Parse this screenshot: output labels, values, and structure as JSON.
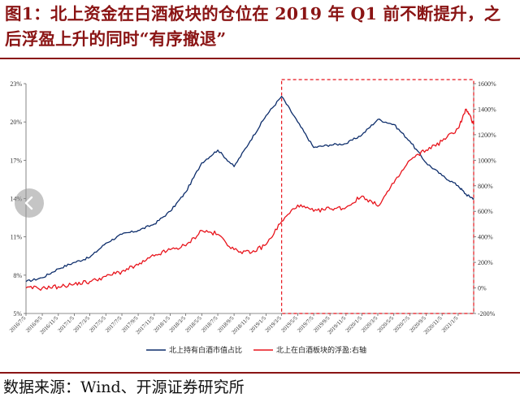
{
  "figure": {
    "title": "图1：北上资金在白酒板块的仓位在 2019 年 Q1 前不断提升，之后浮盈上升的同时“有序撤退”",
    "source": "数据来源：Wind、开源证券研究所"
  },
  "colors": {
    "title": "#8a1414",
    "blue": "#0d2d6b",
    "red": "#e8141c",
    "box": "#e8141c"
  },
  "chart_data": {
    "type": "line",
    "y_left": {
      "range": [
        5,
        23
      ],
      "ticks": [
        "23%",
        "20%",
        "17%",
        "14%",
        "11%",
        "8%",
        "5%"
      ],
      "tick_values": [
        23,
        20,
        17,
        14,
        11,
        8,
        5
      ]
    },
    "y_right": {
      "range": [
        -200,
        1600
      ],
      "ticks": [
        "1600%",
        "1400%",
        "1200%",
        "1000%",
        "800%",
        "600%",
        "400%",
        "200%",
        "0%",
        "-200%"
      ],
      "tick_values": [
        1600,
        1400,
        1200,
        1000,
        800,
        600,
        400,
        200,
        0,
        -200
      ]
    },
    "x_ticks": [
      "2016/7/5",
      "2016/9/5",
      "2016/11/5",
      "2017/1/5",
      "2017/3/5",
      "2017/5/5",
      "2017/7/5",
      "2017/9/5",
      "2017/11/5",
      "2018/1/5",
      "2018/3/5",
      "2018/5/5",
      "2018/7/5",
      "2018/9/5",
      "2018/11/5",
      "2019/1/5",
      "2019/3/5",
      "2019/5/5",
      "2019/7/5",
      "2019/9/5",
      "2019/11/5",
      "2020/1/5",
      "2020/3/5",
      "2020/5/5",
      "2020/7/5",
      "2020/9/5",
      "2020/11/5",
      "2021/1/5"
    ],
    "legend": [
      "北上持有白酒市值占比",
      "北上在白酒板块的浮盈:右轴"
    ],
    "legend_position": "bottom",
    "highlight_region": {
      "x_start": "2019/3/5",
      "x_end": "2021/3/5",
      "style": "dashed red box"
    },
    "series": [
      {
        "name": "北上持有白酒市值占比",
        "axis": "left",
        "color": "#0d2d6b",
        "points": [
          [
            "2016/7/5",
            7.5
          ],
          [
            "2016/9/5",
            7.8
          ],
          [
            "2016/11/5",
            8.5
          ],
          [
            "2017/1/5",
            9.0
          ],
          [
            "2017/3/5",
            9.4
          ],
          [
            "2017/5/5",
            10.5
          ],
          [
            "2017/7/5",
            11.2
          ],
          [
            "2017/9/5",
            11.5
          ],
          [
            "2017/11/5",
            12.0
          ],
          [
            "2018/1/5",
            13.0
          ],
          [
            "2018/3/5",
            14.5
          ],
          [
            "2018/5/5",
            16.8
          ],
          [
            "2018/7/5",
            17.8
          ],
          [
            "2018/9/5",
            16.5
          ],
          [
            "2018/11/5",
            18.5
          ],
          [
            "2019/1/5",
            20.5
          ],
          [
            "2019/3/5",
            22.0
          ],
          [
            "2019/5/5",
            20.0
          ],
          [
            "2019/7/5",
            18.0
          ],
          [
            "2019/9/5",
            18.2
          ],
          [
            "2019/11/5",
            18.3
          ],
          [
            "2020/1/5",
            19.0
          ],
          [
            "2020/3/5",
            20.2
          ],
          [
            "2020/5/5",
            19.8
          ],
          [
            "2020/7/5",
            18.5
          ],
          [
            "2020/9/5",
            16.8
          ],
          [
            "2020/11/5",
            15.8
          ],
          [
            "2021/1/5",
            15.0
          ],
          [
            "2021/2/5",
            14.3
          ],
          [
            "2021/3/5",
            14.0
          ]
        ]
      },
      {
        "name": "北上在白酒板块的浮盈:右轴",
        "axis": "right",
        "color": "#e8141c",
        "points": [
          [
            "2016/7/5",
            0
          ],
          [
            "2016/9/5",
            0
          ],
          [
            "2016/11/5",
            10
          ],
          [
            "2017/1/5",
            30
          ],
          [
            "2017/3/5",
            50
          ],
          [
            "2017/5/5",
            90
          ],
          [
            "2017/7/5",
            130
          ],
          [
            "2017/9/5",
            180
          ],
          [
            "2017/11/5",
            250
          ],
          [
            "2018/1/5",
            300
          ],
          [
            "2018/3/5",
            330
          ],
          [
            "2018/5/5",
            450
          ],
          [
            "2018/7/5",
            420
          ],
          [
            "2018/9/5",
            300
          ],
          [
            "2018/11/5",
            270
          ],
          [
            "2019/1/5",
            340
          ],
          [
            "2019/3/5",
            520
          ],
          [
            "2019/5/5",
            650
          ],
          [
            "2019/7/5",
            600
          ],
          [
            "2019/9/5",
            620
          ],
          [
            "2019/11/5",
            630
          ],
          [
            "2020/1/5",
            720
          ],
          [
            "2020/3/5",
            640
          ],
          [
            "2020/5/5",
            820
          ],
          [
            "2020/7/5",
            1000
          ],
          [
            "2020/9/5",
            1080
          ],
          [
            "2020/11/5",
            1150
          ],
          [
            "2021/1/5",
            1250
          ],
          [
            "2021/2/5",
            1400
          ],
          [
            "2021/3/5",
            1280
          ]
        ]
      }
    ]
  }
}
